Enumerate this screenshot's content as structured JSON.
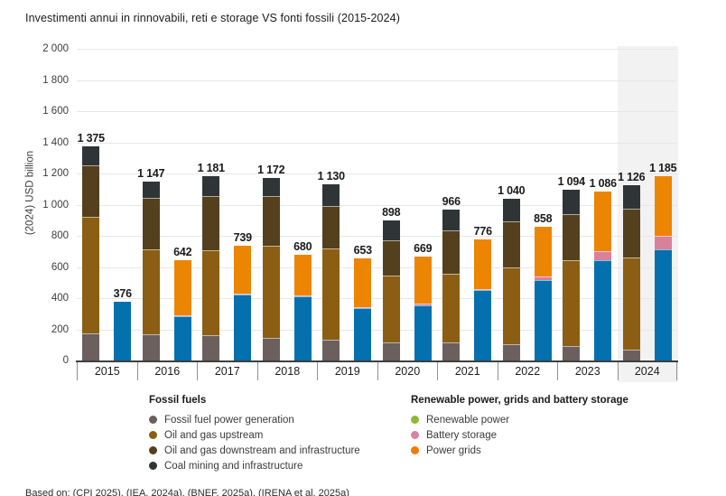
{
  "title": "Investimenti annui in rinnovabili, reti e storage VS fonti fossili (2015-2024)",
  "footnote": "Based on: (CPI 2025), (IEA, 2024a), (BNEF, 2025a), (IRENA et al. 2025a)",
  "y_axis": {
    "label": "(2024) USD billion",
    "ticks": [
      {
        "value": 0,
        "label": "0"
      },
      {
        "value": 200,
        "label": "200"
      },
      {
        "value": 400,
        "label": "400"
      },
      {
        "value": 600,
        "label": "600"
      },
      {
        "value": 800,
        "label": "800"
      },
      {
        "value": 1000,
        "label": "1 000"
      },
      {
        "value": 1200,
        "label": "1 200"
      },
      {
        "value": 1400,
        "label": "1 400"
      },
      {
        "value": 1600,
        "label": "1 600"
      },
      {
        "value": 1800,
        "label": "1 800"
      },
      {
        "value": 2000,
        "label": "2 000"
      }
    ]
  },
  "legend": {
    "fossil": {
      "header": "Fossil fuels",
      "items": [
        {
          "label": "Fossil fuel power generation",
          "color": "#6B605E"
        },
        {
          "label": "Oil and gas upstream",
          "color": "#8B5E14"
        },
        {
          "label": "Oil and gas downstream and infrastructure",
          "color": "#55401D"
        },
        {
          "label": "Coal mining and infrastructure",
          "color": "#2F3537"
        }
      ]
    },
    "renewable": {
      "header": "Renewable power, grids and battery storage",
      "items": [
        {
          "label": "Renewable power",
          "color": "#8CBA32"
        },
        {
          "label": "Battery storage",
          "color": "#D9849E"
        },
        {
          "label": "Power grids",
          "color": "#EF7D00"
        }
      ]
    }
  },
  "chart_data": {
    "type": "bar",
    "stacked": true,
    "grid": true,
    "categories": [
      "2015",
      "2016",
      "2017",
      "2018",
      "2019",
      "2020",
      "2021",
      "2022",
      "2023",
      "2024"
    ],
    "highlight_category": "2024",
    "ylim": [
      0,
      2000
    ],
    "ylabel": "(2024) USD billion",
    "groups": [
      {
        "name": "Fossil fuels",
        "totals": [
          1375,
          1147,
          1181,
          1172,
          1130,
          898,
          966,
          1040,
          1094,
          1126
        ],
        "total_labels": [
          "1 375",
          "1 147",
          "1 181",
          "1 172",
          "1 130",
          "898",
          "966",
          "1 040",
          "1 094",
          "1 126"
        ],
        "series": [
          {
            "name": "Fossil fuel power generation",
            "color": "#6B605E",
            "values": [
              175,
              170,
              160,
              145,
              135,
              115,
              115,
              105,
              95,
              68
            ]
          },
          {
            "name": "Oil and gas upstream",
            "color": "#8B5E14",
            "values": [
              745,
              545,
              548,
              590,
              585,
              430,
              440,
              492,
              550,
              592
            ]
          },
          {
            "name": "Oil and gas downstream and infrastructure",
            "color": "#55401D",
            "values": [
              335,
              330,
              350,
              323,
              274,
              225,
              280,
              295,
              297,
              314
            ]
          },
          {
            "name": "Coal mining and infrastructure",
            "color": "#2F3537",
            "values": [
              120,
              102,
              123,
              114,
              136,
              128,
              131,
              148,
              152,
              152
            ]
          }
        ]
      },
      {
        "name": "Renewable power, grids and battery storage",
        "totals": [
          376,
          642,
          739,
          680,
          653,
          669,
          776,
          858,
          1086,
          1185
        ],
        "total_labels": [
          "376",
          "642",
          "739",
          "680",
          "653",
          "669",
          "776",
          "858",
          "1 086",
          "1 185"
        ],
        "series": [
          {
            "name": "Renewable power",
            "color": "#0570AE",
            "values": [
              376,
              285,
              422,
              412,
              336,
              355,
              452,
              515,
              645,
              715
            ]
          },
          {
            "name": "Battery storage",
            "color": "#D9809B",
            "values": [
              0,
              5,
              5,
              5,
              8,
              10,
              8,
              25,
              55,
              85
            ]
          },
          {
            "name": "Power grids",
            "color": "#EC8502",
            "values": [
              0,
              352,
              312,
              263,
              309,
              304,
              316,
              318,
              386,
              385
            ]
          }
        ]
      }
    ]
  }
}
